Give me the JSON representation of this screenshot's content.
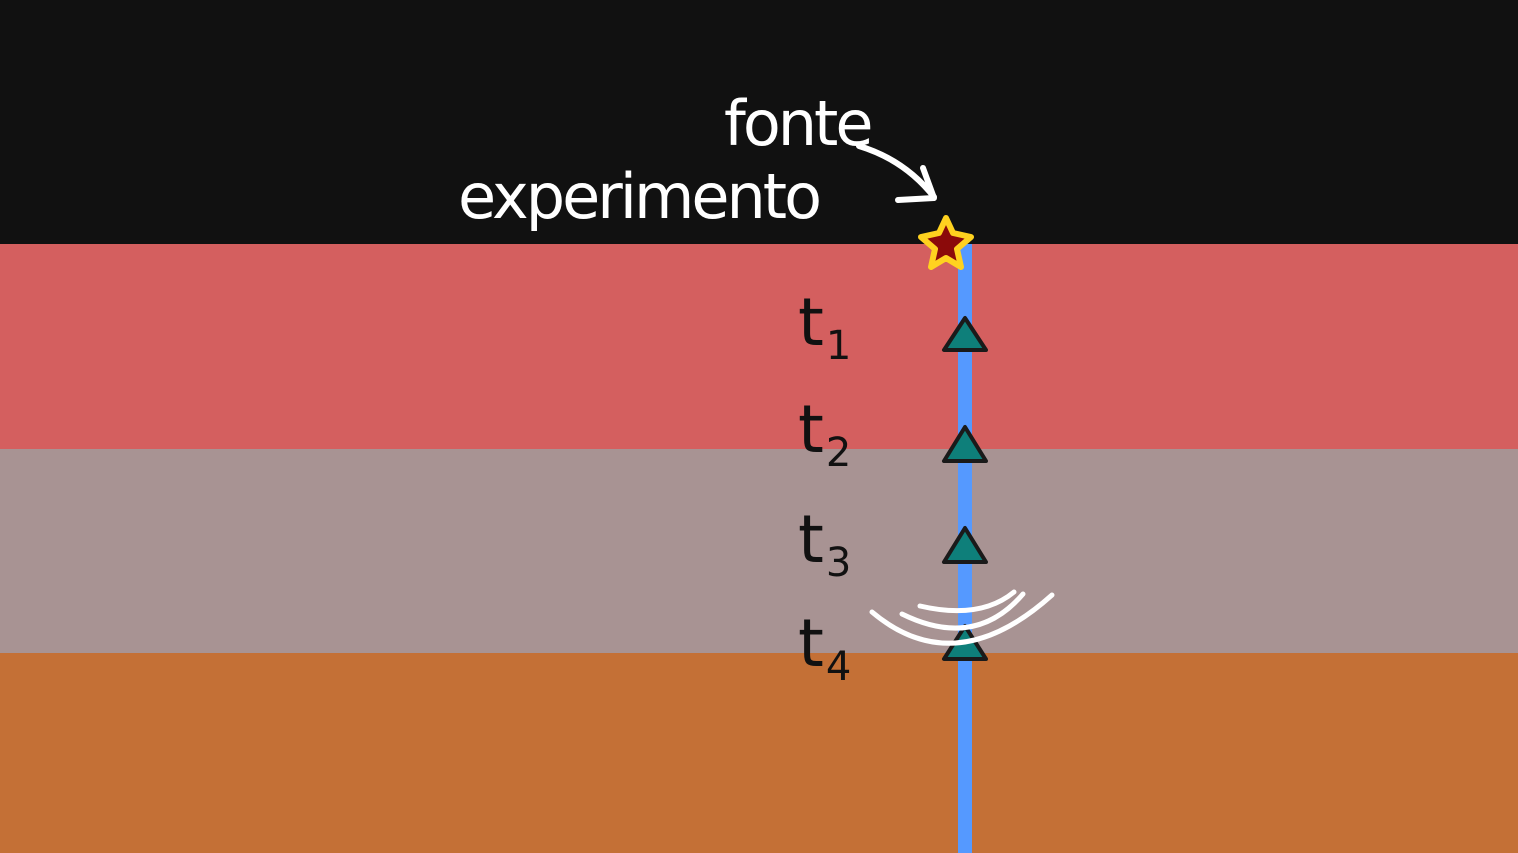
{
  "labels": {
    "source": "fonte",
    "experiment": "experimento"
  },
  "receivers": [
    {
      "letter": "t",
      "index": "1"
    },
    {
      "letter": "t",
      "index": "2"
    },
    {
      "letter": "t",
      "index": "3"
    },
    {
      "letter": "t",
      "index": "4"
    }
  ],
  "colors": {
    "sky": "#111111",
    "layer_1": "#d45f5f",
    "layer_2": "#a89393",
    "layer_3": "#c47036",
    "borehole": "#5599ff",
    "receiver_fill": "#0e7f7a",
    "receiver_stroke": "#1a1a1a",
    "source_fill": "#8b0a0a",
    "source_stroke": "#ffd21f",
    "annotation": "#ffffff"
  },
  "icons": {
    "source": "star-icon",
    "receiver": "triangle-icon",
    "arrow": "curved-arrow-icon",
    "wave": "wave-arcs-icon"
  }
}
